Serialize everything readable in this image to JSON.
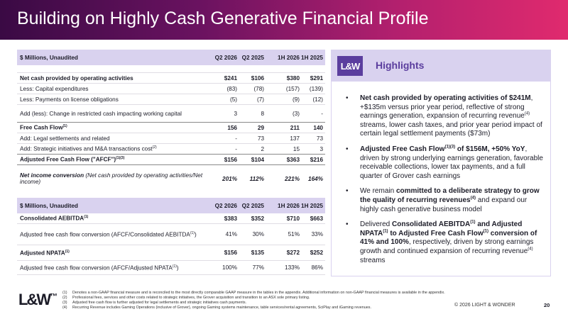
{
  "title": "Building on Highly Cash Generative Financial Profile",
  "table1": {
    "headers": [
      "$ Millions, Unaudited",
      "Q2 2026",
      "Q2 2025",
      "1H 2026",
      "1H 2025"
    ],
    "rows": [
      {
        "label": "Net cash provided by operating activities",
        "q2_26": "$241",
        "q2_25": "$106",
        "h1_26": "$380",
        "h1_25": "$291"
      },
      {
        "label": "Less: Capital expenditures",
        "q2_26": "(83)",
        "q2_25": "(78)",
        "h1_26": "(157)",
        "h1_25": "(139)"
      },
      {
        "label": "Less: Payments on license obligations",
        "q2_26": "(5)",
        "q2_25": "(7)",
        "h1_26": "(9)",
        "h1_25": "(12)"
      },
      {
        "label": "Add (less): Change in restricted cash impacting working capital",
        "q2_26": "3",
        "q2_25": "8",
        "h1_26": "(3)",
        "h1_25": "-"
      },
      {
        "label": "Free Cash Flow",
        "sup": "(1)",
        "q2_26": "156",
        "q2_25": "29",
        "h1_26": "211",
        "h1_25": "140"
      },
      {
        "label": "Add: Legal settlements and related",
        "q2_26": "-",
        "q2_25": "73",
        "h1_26": "137",
        "h1_25": "73"
      },
      {
        "label": "Add: Strategic initiatives and M&A transactions cost",
        "sup": "(2)",
        "q2_26": "-",
        "q2_25": "2",
        "h1_26": "15",
        "h1_25": "3"
      },
      {
        "label": "Adjusted Free Cash Flow (\"AFCF\")",
        "sup": "(1)(3)",
        "q2_26": "$156",
        "q2_25": "$104",
        "h1_26": "$363",
        "h1_25": "$216"
      },
      {
        "label_a": "Net income conversion",
        "label_b": " (Net cash provided by operating activities/Net income)",
        "q2_26": "201%",
        "q2_25": "112%",
        "h1_26": "221%",
        "h1_25": "164%"
      }
    ]
  },
  "table2": {
    "headers": [
      "$ Millions, Unaudited",
      "Q2 2026",
      "Q2 2025",
      "1H 2026",
      "1H 2025"
    ],
    "rows": [
      {
        "label": "Consolidated AEBITDA",
        "sup": "(1)",
        "q2_26": "$383",
        "q2_25": "$352",
        "h1_26": "$710",
        "h1_25": "$663"
      },
      {
        "label": "Adjusted free cash flow conversion (AFCF/Consolidated AEBITDA",
        "sup": "(1)",
        "label_end": ")",
        "q2_26": "41%",
        "q2_25": "30%",
        "h1_26": "51%",
        "h1_25": "33%"
      },
      {
        "label": "Adjusted NPATA",
        "sup": "(1)",
        "q2_26": "$156",
        "q2_25": "$135",
        "h1_26": "$272",
        "h1_25": "$252"
      },
      {
        "label": "Adjusted free cash flow conversion (AFCF/Adjusted NPATA",
        "sup": "(1)",
        "label_end": ")",
        "q2_26": "100%",
        "q2_25": "77%",
        "h1_26": "133%",
        "h1_25": "86%"
      }
    ]
  },
  "highlights": {
    "logo": "L&W",
    "title": "Highlights",
    "b1": {
      "bold": "Net cash provided by operating activities of $241M",
      "rest": ", +$135m versus prior year period, reflective of strong earnings generation, expansion of recurring revenue",
      "sup": "(4)",
      "rest2": " streams, lower cash taxes, and prior year period impact of certain legal settlement payments ($73m)"
    },
    "b2": {
      "bold": "Adjusted Free Cash Flow",
      "sup": "(1)(3)",
      "bold2": " of $156M, +50% YoY",
      "rest": ", driven by strong underlying earnings generation, favorable receivable collections, lower tax payments, and a full quarter of Grover cash earnings"
    },
    "b3": {
      "pre": "We remain ",
      "bold": "committed to a deliberate strategy to grow the quality of recurring revenues",
      "sup": "(4)",
      "rest": " and expand our highly cash generative business model"
    },
    "b4": {
      "pre": "Delivered ",
      "bold": "Consolidated AEBITDA",
      "sup": "(1)",
      "bold2": " and Adjusted NPATA",
      "sup2": "(1)",
      "bold3": " to Adjusted Free Cash Flow",
      "sup3": "(1)",
      "bold4": " conversion of 41% and 100%",
      "rest": ", respectively, driven by strong earnings growth and continued expansion of recurring revenue",
      "sup4": "(4)",
      "rest2": " streams"
    }
  },
  "footer": {
    "logo": "L&W",
    "logo_tm": "™",
    "notes": [
      {
        "num": "(1)",
        "text": "Denotes a non-GAAP financial measure and is reconciled to the most directly comparable GAAP measure in the tables in the appendix. Additional information on non-GAAP financial measures is available in the appendix."
      },
      {
        "num": "(2)",
        "text": "Professional fees, services and other costs related to strategic initiatives, the Grover acquisition and transition to an ASX sole primary listing."
      },
      {
        "num": "(3)",
        "text": "Adjusted free cash flow is further adjusted for legal settlements and strategic initiatives cash payments."
      },
      {
        "num": "(4)",
        "text": "Recurring Revenue includes Gaming Operations (inclusive of Grover), ongoing Gaming systems maintenance, table services/rental agreements, SciPlay and iGaming revenues."
      }
    ],
    "copyright": "© 2026 LIGHT & WONDER",
    "page": "20"
  }
}
